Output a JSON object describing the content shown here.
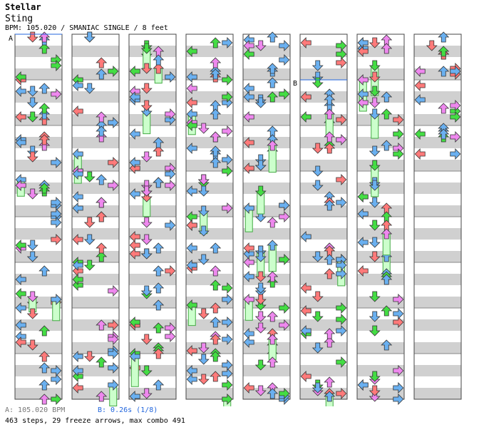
{
  "song": {
    "title": "Stellar",
    "artist": "Sting",
    "info": "BPM: 105.020 / SMANIAC SINGLE / 8 feet"
  },
  "markers": {
    "bpm_marker": "A",
    "stop_marker": "B"
  },
  "footer": {
    "bpm_line": "A: 105.020 BPM",
    "stop_line": "B: 0.26s (1/8)",
    "stats": "463 steps, 29 freeze arrows, max combo 491"
  },
  "colors": {
    "quarter": "#ff7a7a",
    "eighth": "#6ab0f0",
    "sixteenth": "#ee88ee",
    "twelfth": "#44dd44",
    "freeze": "#ccffcc",
    "band": "#d0d0d0",
    "stop_line": "#2266dd"
  },
  "chart_data": {
    "type": "step_chart",
    "columns": 8,
    "measures_per_column": 8,
    "lanes": [
      "left",
      "down",
      "up",
      "right"
    ],
    "measure_notes": [
      [
        [
          0,
          1,
          0,
          4
        ],
        [
          1,
          0,
          2,
          4
        ],
        [
          2,
          3,
          0,
          8
        ],
        [
          3,
          2,
          1,
          8
        ]
      ]
    ]
  }
}
